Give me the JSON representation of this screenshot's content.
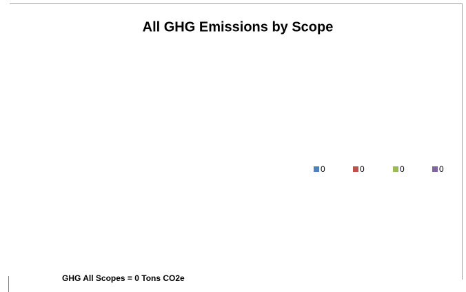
{
  "chart_data": {
    "type": "pie",
    "title": "All GHG Emissions by Scope",
    "categories": [
      "0",
      "0",
      "0",
      "0"
    ],
    "values": [
      0,
      0,
      0,
      0
    ],
    "colors": [
      "#4f81bd",
      "#c0504d",
      "#9bbb59",
      "#8064a2"
    ],
    "annotation": "GHG All Scopes = 0 Tons CO2e",
    "legend": "right"
  }
}
